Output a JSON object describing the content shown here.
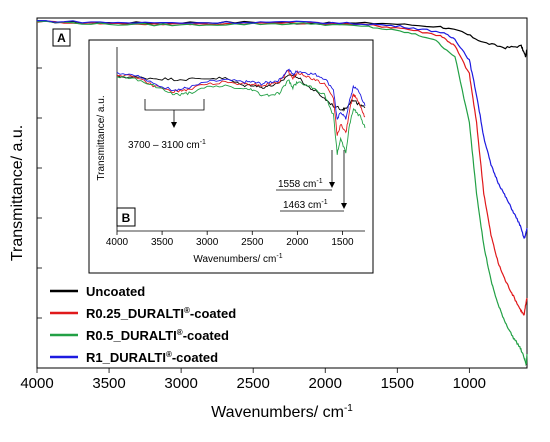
{
  "chart_data": [
    {
      "type": "line",
      "panel_label": "A",
      "xlabel": "Wavenumbers/ cm",
      "xlabel_sup": "-1",
      "ylabel": "Transmittance/ a.u.",
      "xlim": [
        4000,
        600
      ],
      "ylim": [
        0,
        100
      ],
      "x_ticks": [
        "4000",
        "3500",
        "3000",
        "2500",
        "2000",
        "1500",
        "1000"
      ],
      "legend_placement": "lower-left",
      "series": [
        {
          "name": "Uncoated",
          "pre": "Uncoated",
          "sup": "",
          "post": "",
          "color": "#000000",
          "points": [
            [
              4000,
              99
            ],
            [
              3500,
              98.6
            ],
            [
              3000,
              98.7
            ],
            [
              2500,
              98.8
            ],
            [
              2100,
              98.5
            ],
            [
              1600,
              98.5
            ],
            [
              1200,
              97.5
            ],
            [
              1050,
              96
            ],
            [
              900,
              93
            ],
            [
              750,
              91.5
            ],
            [
              640,
              92
            ],
            [
              610,
              89
            ],
            [
              600,
              91
            ]
          ]
        },
        {
          "name": "R0.25_DURALTI®-coated",
          "pre": "R0.25_DURALTI",
          "sup": "®",
          "post": "-coated",
          "color": "#e0191b",
          "points": [
            [
              4000,
              99
            ],
            [
              3500,
              98.4
            ],
            [
              3000,
              98.2
            ],
            [
              2500,
              98.5
            ],
            [
              2100,
              98.6
            ],
            [
              1700,
              98
            ],
            [
              1450,
              97
            ],
            [
              1200,
              95
            ],
            [
              1100,
              92
            ],
            [
              1000,
              84
            ],
            [
              950,
              70
            ],
            [
              900,
              50
            ],
            [
              850,
              38
            ],
            [
              800,
              30
            ],
            [
              750,
              25
            ],
            [
              700,
              21
            ],
            [
              650,
              17
            ],
            [
              620,
              15
            ],
            [
              610,
              18
            ],
            [
              600,
              20
            ]
          ]
        },
        {
          "name": "R0.5_DURALTI®-coated",
          "pre": "R0.5_DURALTI",
          "sup": "®",
          "post": "-coated",
          "color": "#22a045",
          "points": [
            [
              4000,
              99
            ],
            [
              3500,
              98.2
            ],
            [
              3000,
              98
            ],
            [
              2500,
              98.3
            ],
            [
              2100,
              98.4
            ],
            [
              1700,
              97.5
            ],
            [
              1450,
              96
            ],
            [
              1250,
              94
            ],
            [
              1100,
              89
            ],
            [
              1000,
              70
            ],
            [
              950,
              50
            ],
            [
              900,
              35
            ],
            [
              850,
              25
            ],
            [
              800,
              18
            ],
            [
              750,
              13
            ],
            [
              700,
              9
            ],
            [
              650,
              6
            ],
            [
              620,
              3
            ],
            [
              605,
              1
            ],
            [
              600,
              4
            ]
          ]
        },
        {
          "name": "R1_DURALTI®-coated",
          "pre": "R1_DURALTI",
          "sup": "®",
          "post": "-coated",
          "color": "#1d1ae0",
          "points": [
            [
              4000,
              99.2
            ],
            [
              3500,
              98.7
            ],
            [
              3000,
              98.6
            ],
            [
              2500,
              98.8
            ],
            [
              2100,
              98.8
            ],
            [
              1700,
              98.3
            ],
            [
              1450,
              97.5
            ],
            [
              1200,
              96
            ],
            [
              1100,
              94
            ],
            [
              1000,
              88
            ],
            [
              950,
              78
            ],
            [
              900,
              66
            ],
            [
              850,
              58
            ],
            [
              800,
              53
            ],
            [
              750,
              49
            ],
            [
              700,
              45
            ],
            [
              650,
              41
            ],
            [
              620,
              37
            ],
            [
              610,
              38
            ],
            [
              600,
              40
            ]
          ]
        }
      ]
    },
    {
      "type": "line",
      "panel_label": "B",
      "xlabel": "Wavenumbers/ cm",
      "xlabel_sup": "-1",
      "ylabel": "Transmittance/ a.u.",
      "xlim": [
        4000,
        1250
      ],
      "ylim": [
        0,
        100
      ],
      "x_ticks": [
        "4000",
        "3500",
        "3000",
        "2500",
        "2000",
        "1500"
      ],
      "annotations": [
        {
          "text": "3700 – 3100 cm",
          "sup": "-1"
        },
        {
          "text": "1558 cm",
          "sup": "-1"
        },
        {
          "text": "1463 cm",
          "sup": "-1"
        }
      ],
      "series": [
        {
          "name": "Uncoated",
          "color": "#000000",
          "points": [
            [
              4000,
              84
            ],
            [
              3800,
              83.5
            ],
            [
              3600,
              83
            ],
            [
              3400,
              82.5
            ],
            [
              3200,
              82.5
            ],
            [
              3000,
              83
            ],
            [
              2800,
              83
            ],
            [
              2600,
              79
            ],
            [
              2500,
              79.5
            ],
            [
              2400,
              78
            ],
            [
              2300,
              79
            ],
            [
              2200,
              80
            ],
            [
              2100,
              85
            ],
            [
              2000,
              84
            ],
            [
              1900,
              79
            ],
            [
              1800,
              76
            ],
            [
              1700,
              72
            ],
            [
              1600,
              68
            ],
            [
              1500,
              66
            ],
            [
              1460,
              67
            ],
            [
              1400,
              71
            ],
            [
              1350,
              70
            ],
            [
              1300,
              68
            ],
            [
              1250,
              67
            ]
          ]
        },
        {
          "name": "R0.25_DURALTI®-coated",
          "color": "#e0191b",
          "points": [
            [
              4000,
              85
            ],
            [
              3800,
              84
            ],
            [
              3600,
              79
            ],
            [
              3400,
              76
            ],
            [
              3300,
              76
            ],
            [
              3200,
              77
            ],
            [
              3000,
              80
            ],
            [
              2800,
              81
            ],
            [
              2600,
              80
            ],
            [
              2500,
              80
            ],
            [
              2400,
              79
            ],
            [
              2300,
              80
            ],
            [
              2200,
              81
            ],
            [
              2100,
              87
            ],
            [
              2050,
              83
            ],
            [
              2000,
              86
            ],
            [
              1900,
              84
            ],
            [
              1800,
              82
            ],
            [
              1700,
              80
            ],
            [
              1600,
              72
            ],
            [
              1558,
              52
            ],
            [
              1520,
              58
            ],
            [
              1463,
              53
            ],
            [
              1420,
              66
            ],
            [
              1380,
              74
            ],
            [
              1350,
              73
            ],
            [
              1300,
              68
            ],
            [
              1250,
              62
            ]
          ]
        },
        {
          "name": "R0.5_DURALTI®-coated",
          "color": "#22a045",
          "points": [
            [
              4000,
              84
            ],
            [
              3800,
              83
            ],
            [
              3600,
              79
            ],
            [
              3400,
              75
            ],
            [
              3300,
              74
            ],
            [
              3200,
              75
            ],
            [
              3000,
              78
            ],
            [
              2800,
              79
            ],
            [
              2600,
              77
            ],
            [
              2500,
              77
            ],
            [
              2400,
              74
            ],
            [
              2300,
              74
            ],
            [
              2200,
              75
            ],
            [
              2100,
              82
            ],
            [
              2050,
              78
            ],
            [
              2000,
              81
            ],
            [
              1900,
              79
            ],
            [
              1800,
              77
            ],
            [
              1700,
              74
            ],
            [
              1600,
              63
            ],
            [
              1558,
              42
            ],
            [
              1520,
              50
            ],
            [
              1463,
              43
            ],
            [
              1420,
              58
            ],
            [
              1380,
              66
            ],
            [
              1350,
              65
            ],
            [
              1300,
              62
            ],
            [
              1250,
              56
            ]
          ]
        },
        {
          "name": "R1_DURALTI®-coated",
          "color": "#1d1ae0",
          "points": [
            [
              4000,
              86
            ],
            [
              3800,
              85
            ],
            [
              3600,
              80
            ],
            [
              3400,
              77
            ],
            [
              3300,
              77
            ],
            [
              3200,
              78
            ],
            [
              3000,
              81
            ],
            [
              2800,
              82
            ],
            [
              2600,
              81
            ],
            [
              2500,
              81
            ],
            [
              2400,
              80
            ],
            [
              2300,
              81
            ],
            [
              2200,
              82
            ],
            [
              2100,
              88
            ],
            [
              2050,
              85
            ],
            [
              2000,
              87
            ],
            [
              1900,
              86
            ],
            [
              1800,
              85
            ],
            [
              1700,
              83
            ],
            [
              1600,
              77
            ],
            [
              1558,
              60
            ],
            [
              1520,
              65
            ],
            [
              1463,
              61
            ],
            [
              1420,
              71
            ],
            [
              1380,
              78
            ],
            [
              1350,
              78
            ],
            [
              1300,
              74
            ],
            [
              1250,
              68
            ]
          ]
        }
      ]
    }
  ]
}
